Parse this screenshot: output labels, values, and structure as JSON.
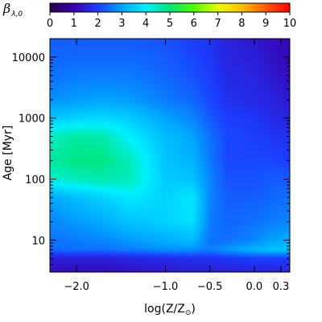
{
  "chart_data": {
    "type": "heatmap",
    "title": "",
    "colorbar": {
      "label_symbol": "β",
      "label_subscript": "λ,0",
      "range": [
        0,
        10
      ],
      "ticks": [
        "0",
        "1",
        "2",
        "3",
        "4",
        "5",
        "6",
        "7",
        "8",
        "9",
        "10"
      ],
      "colors": [
        "#2a0052",
        "#3a00b0",
        "#1c3cff",
        "#00a6ff",
        "#00f0ff",
        "#00e676",
        "#4cff00",
        "#e6ff00",
        "#ffc000",
        "#ff5a00",
        "#ff0000"
      ]
    },
    "xaxis": {
      "label": "log(Z/Z",
      "label_sub": "⊙",
      "label_close": ")",
      "range": [
        -2.3,
        0.4
      ],
      "ticks": [
        {
          "value": -2.0,
          "label": "−2.0"
        },
        {
          "value": -1.0,
          "label": "−1.0"
        },
        {
          "value": -0.5,
          "label": "−0.5"
        },
        {
          "value": 0.0,
          "label": "0.0"
        },
        {
          "value": 0.3,
          "label": "0.3"
        }
      ]
    },
    "yaxis": {
      "label": "Age [Myr]",
      "scale": "log",
      "range": [
        3,
        20000
      ],
      "ticks": [
        {
          "value": 10,
          "label": "10"
        },
        {
          "value": 100,
          "label": "100"
        },
        {
          "value": 1000,
          "label": "1000"
        },
        {
          "value": 10000,
          "label": "10000"
        }
      ]
    },
    "grid": {
      "x": [
        -2.3,
        -2.0,
        -1.7,
        -1.4,
        -1.0,
        -0.7,
        -0.5,
        -0.3,
        0.0,
        0.2,
        0.4
      ],
      "y": [
        3,
        5,
        7,
        10,
        20,
        50,
        100,
        200,
        500,
        1000,
        2000,
        5000,
        10000,
        20000
      ],
      "z": [
        [
          1.2,
          1.2,
          1.2,
          1.3,
          1.4,
          1.5,
          1.5,
          1.5,
          1.6,
          1.6,
          1.6
        ],
        [
          1.5,
          1.5,
          1.5,
          1.6,
          1.7,
          1.8,
          1.8,
          1.9,
          2.0,
          2.0,
          2.0
        ],
        [
          2.4,
          2.5,
          2.5,
          2.6,
          2.8,
          2.8,
          2.6,
          2.9,
          3.2,
          3.4,
          3.4
        ],
        [
          2.5,
          2.6,
          2.7,
          2.9,
          3.1,
          3.3,
          2.5,
          2.5,
          2.7,
          3.0,
          3.1
        ],
        [
          2.7,
          2.9,
          3.1,
          3.4,
          3.6,
          3.8,
          2.6,
          2.4,
          2.5,
          2.6,
          2.7
        ],
        [
          3.0,
          3.3,
          3.6,
          3.9,
          3.6,
          3.9,
          2.7,
          2.3,
          2.3,
          2.4,
          2.5
        ],
        [
          4.3,
          4.5,
          4.6,
          4.5,
          3.5,
          3.4,
          2.7,
          2.2,
          2.2,
          2.3,
          2.3
        ],
        [
          4.7,
          4.9,
          4.9,
          4.5,
          3.4,
          3.2,
          2.6,
          2.1,
          2.1,
          2.1,
          2.0
        ],
        [
          4.4,
          4.7,
          4.6,
          4.0,
          3.3,
          3.0,
          2.5,
          2.1,
          2.0,
          1.9,
          1.8
        ],
        [
          3.4,
          3.6,
          3.7,
          3.5,
          3.0,
          2.7,
          2.3,
          2.0,
          1.9,
          1.7,
          1.6
        ],
        [
          2.8,
          2.9,
          3.0,
          2.9,
          2.6,
          2.4,
          2.1,
          1.8,
          1.7,
          1.6,
          1.4
        ],
        [
          2.5,
          2.6,
          2.6,
          2.6,
          2.4,
          2.2,
          2.0,
          1.7,
          1.6,
          1.4,
          1.2
        ],
        [
          2.4,
          2.4,
          2.4,
          2.4,
          2.3,
          2.1,
          1.9,
          1.6,
          1.5,
          1.3,
          1.1
        ],
        [
          2.3,
          2.3,
          2.3,
          2.3,
          2.2,
          2.0,
          1.9,
          1.6,
          1.4,
          1.2,
          1.1
        ]
      ]
    },
    "grid_lines": false,
    "legend": "colorbar-top"
  }
}
